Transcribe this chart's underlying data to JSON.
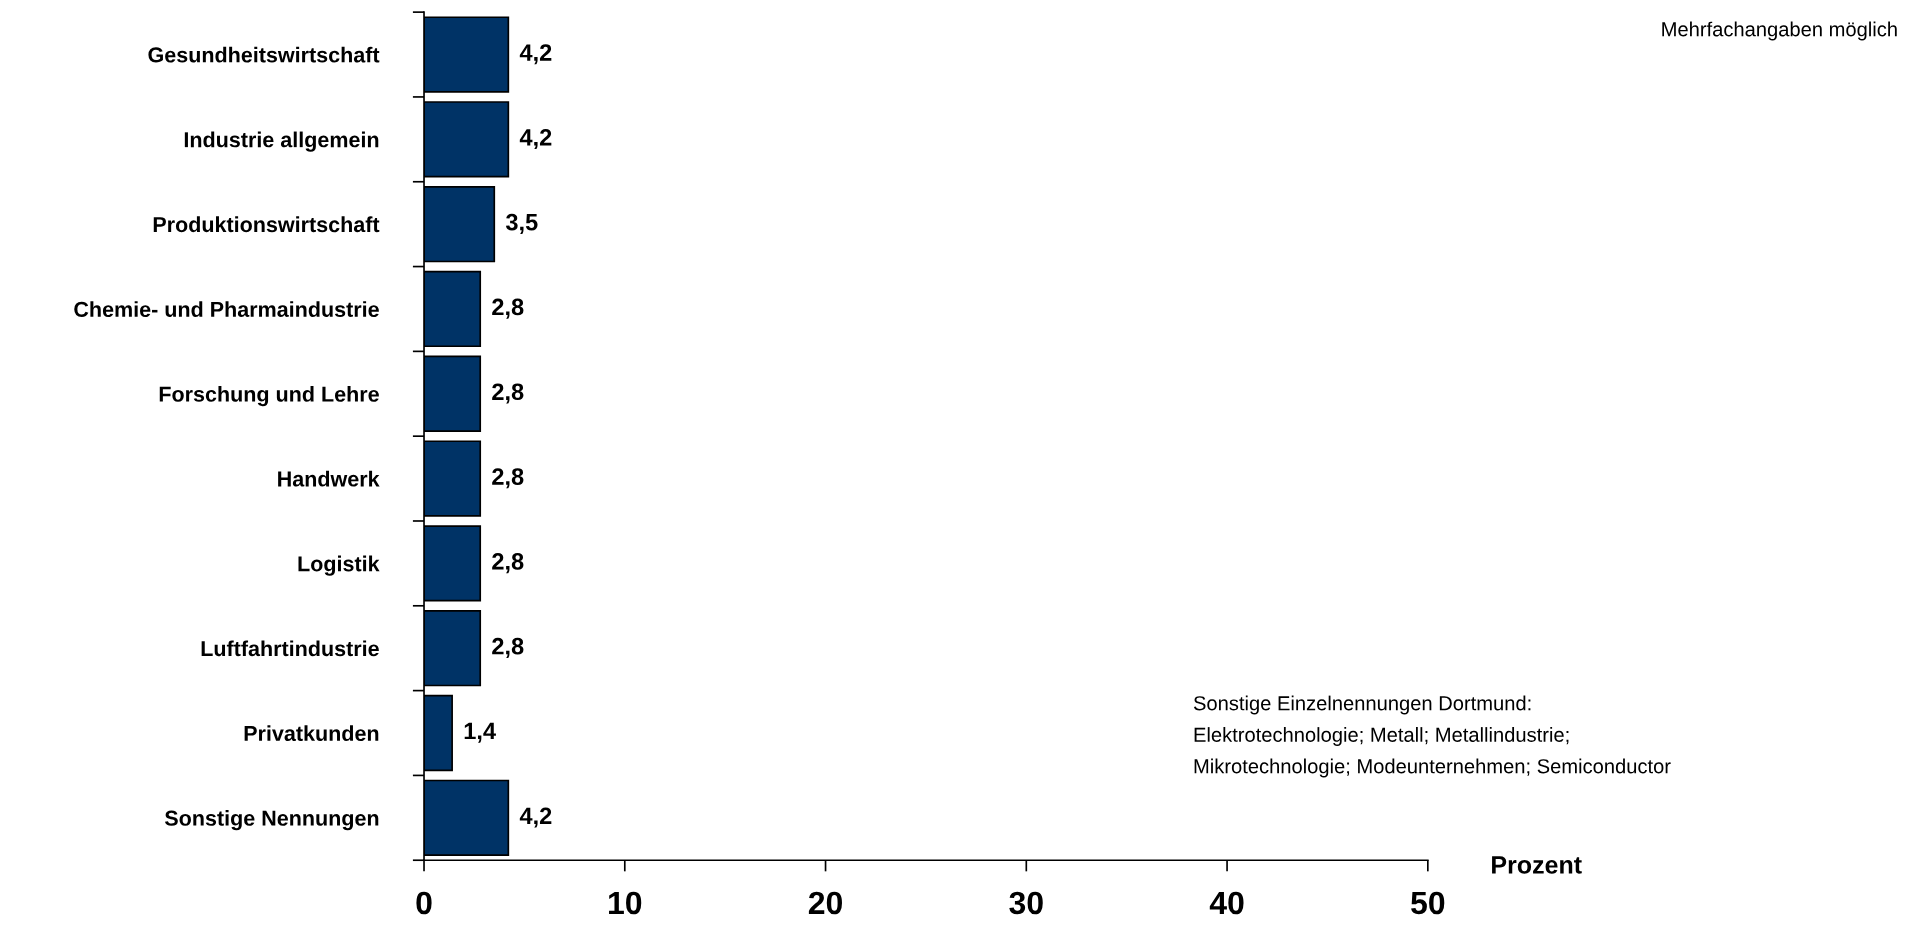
{
  "chart_data": {
    "type": "bar",
    "orientation": "horizontal",
    "categories": [
      "Gesundheitswirtschaft",
      "Industrie allgemein",
      "Produktionswirtschaft",
      "Chemie- und Pharmaindustrie",
      "Forschung und Lehre",
      "Handwerk",
      "Logistik",
      "Luftfahrtindustrie",
      "Privatkunden",
      "Sonstige Nennungen"
    ],
    "values": [
      4.2,
      4.2,
      3.5,
      2.8,
      2.8,
      2.8,
      2.8,
      2.8,
      1.4,
      4.2
    ],
    "value_labels": [
      "4,2",
      "4,2",
      "3,5",
      "2,8",
      "2,8",
      "2,8",
      "2,8",
      "2,8",
      "1,4",
      "4,2"
    ],
    "color": "#003366",
    "xlim": [
      0,
      50
    ],
    "xticks": [
      0,
      10,
      20,
      30,
      40,
      50
    ],
    "xlabel": "Prozent",
    "grid": false,
    "legend": false,
    "annotations": [
      "Mehrfachangaben möglich",
      "Sonstige Einzelnennungen Dortmund:",
      "Elektrotechnologie; Metall; Metallindustrie;",
      "Mikrotechnologie; Modeunternehmen; Semiconductor"
    ]
  }
}
